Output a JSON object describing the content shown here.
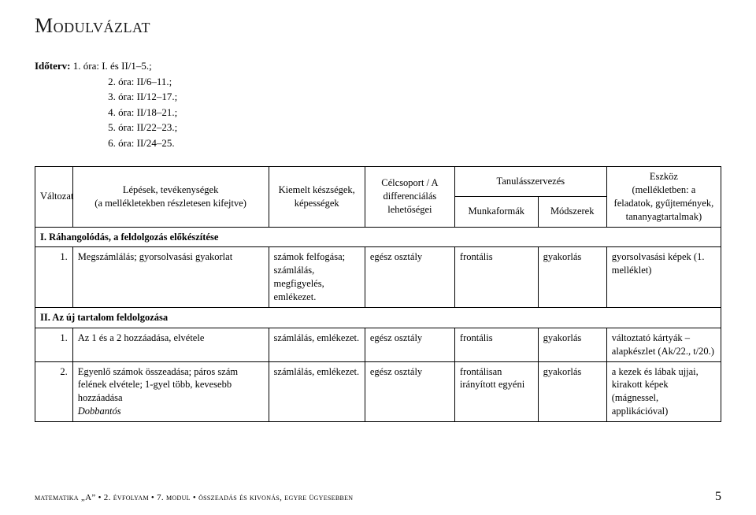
{
  "title": "Modulvázlat",
  "timeline": {
    "label": "Időterv:",
    "rows": [
      "1. óra: I. és II/1–5.;",
      "2. óra: II/6–11.;",
      "3. óra: II/12–17.;",
      "4. óra: II/18–21.;",
      "5. óra: II/22–23.;",
      "6. óra: II/24–25."
    ]
  },
  "header": {
    "valtozat": "Változat",
    "lepesek": "Lépések, tevékenységek",
    "lepesek_sub": "(a mellékletekben részletesen kifejtve)",
    "kiemelt": "Kiemelt készségek, képességek",
    "celcsoport": "Célcsoport / A differenciálás lehetőségei",
    "tanulas": "Tanulásszervezés",
    "munkaformak": "Munkaformák",
    "modszerek": "Módszerek",
    "eszkoz": "Eszköz",
    "eszkoz_sub": "(mellékletben: a feladatok, gyűjtemények, tananyagtartalmak)"
  },
  "sections": {
    "I": "I. Ráhangolódás, a feldolgozás előkészítése",
    "II": "II. Az új tartalom feldolgozása"
  },
  "rows": {
    "r1": {
      "num": "1.",
      "lep": "Megszámlálás; gyorsolvasási gyakorlat",
      "kep": "számok felfogása; számlálás, megfigyelés, emlékezet.",
      "cel": "egész osztály",
      "munka": "frontális",
      "mod": "gyakorlás",
      "eszk": "gyorsolvasási képek (1. melléklet)"
    },
    "r2": {
      "num": "1.",
      "lep": "Az 1 és a 2 hozzáadása, elvétele",
      "kep": "számlálás, emlékezet.",
      "cel": "egész osztály",
      "munka": "frontális",
      "mod": "gyakorlás",
      "eszk": "változtató kártyák – alapkészlet (Ak/22., t/20.)"
    },
    "r3": {
      "num": "2.",
      "lep_a": "Egyenlő számok összeadása; páros szám felének elvétele; 1-gyel több, kevesebb hozzáadása",
      "lep_b": "Dobbantós",
      "kep": "számlálás, emlékezet.",
      "cel": "egész osztály",
      "munka": "frontálisan irányított egyéni",
      "mod": "gyakorlás",
      "eszk": "a kezek és lábak ujjai, kirakott képek (mágnessel, applikációval)"
    }
  },
  "footer": {
    "left": "matematika „A” • 2. évfolyam • 7. modul • összeadás és kivonás, egyre ügyesebben",
    "page": "5"
  }
}
